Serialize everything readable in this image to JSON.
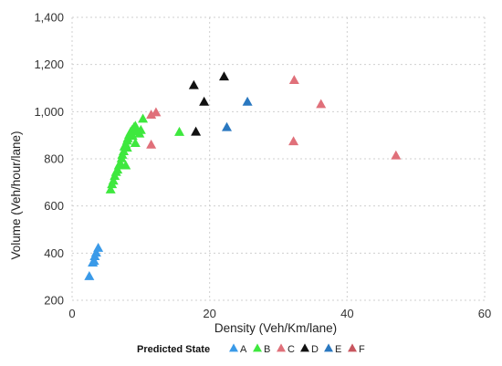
{
  "chart_data": {
    "type": "scatter",
    "title": "",
    "xlabel": "Density (Veh/Km/lane)",
    "ylabel": "Volume (Veh/hour/lane)",
    "xlim": [
      0,
      60
    ],
    "ylim": [
      200,
      1400
    ],
    "x_ticks": [
      "0",
      "20",
      "40",
      "60"
    ],
    "y_ticks": [
      "200",
      "400",
      "600",
      "800",
      "1,000",
      "1,200",
      "1,400"
    ],
    "grid": true,
    "marker": "triangle",
    "legend": {
      "title": "Predicted State",
      "position": "bottom"
    },
    "series": [
      {
        "name": "A",
        "color": "#3a9ae8",
        "points": [
          [
            2.5,
            300
          ],
          [
            3.0,
            358
          ],
          [
            3.2,
            365
          ],
          [
            3.3,
            385
          ],
          [
            3.5,
            400
          ],
          [
            3.8,
            420
          ]
        ]
      },
      {
        "name": "B",
        "color": "#3ee83e",
        "points": [
          [
            5.6,
            668
          ],
          [
            5.8,
            690
          ],
          [
            6.0,
            705
          ],
          [
            6.2,
            725
          ],
          [
            6.4,
            742
          ],
          [
            6.6,
            752
          ],
          [
            6.8,
            770
          ],
          [
            7.0,
            780
          ],
          [
            7.2,
            800
          ],
          [
            7.3,
            815
          ],
          [
            7.5,
            830
          ],
          [
            7.6,
            850
          ],
          [
            7.8,
            860
          ],
          [
            8.0,
            875
          ],
          [
            8.1,
            885
          ],
          [
            8.3,
            900
          ],
          [
            8.5,
            912
          ],
          [
            8.7,
            920
          ],
          [
            9.0,
            932
          ],
          [
            9.2,
            938
          ],
          [
            9.5,
            915
          ],
          [
            9.8,
            905
          ],
          [
            10.0,
            920
          ],
          [
            10.3,
            968
          ],
          [
            9.2,
            865
          ],
          [
            7.8,
            770
          ],
          [
            15.6,
            912
          ],
          [
            8.0,
            845
          ],
          [
            8.8,
            895
          ]
        ]
      },
      {
        "name": "C",
        "color": "#e0707a",
        "points": [
          [
            11.5,
            858
          ],
          [
            11.5,
            985
          ],
          [
            12.2,
            995
          ],
          [
            32.3,
            1132
          ],
          [
            36.2,
            1030
          ],
          [
            32.2,
            872
          ],
          [
            47.1,
            812
          ]
        ]
      },
      {
        "name": "D",
        "color": "#111111",
        "points": [
          [
            17.7,
            1110
          ],
          [
            18.0,
            913
          ],
          [
            19.2,
            1040
          ],
          [
            22.1,
            1147
          ]
        ]
      },
      {
        "name": "E",
        "color": "#2a78c0",
        "points": [
          [
            22.5,
            932
          ],
          [
            25.5,
            1040
          ]
        ]
      },
      {
        "name": "F",
        "color": "#c8565f",
        "points": []
      }
    ]
  }
}
